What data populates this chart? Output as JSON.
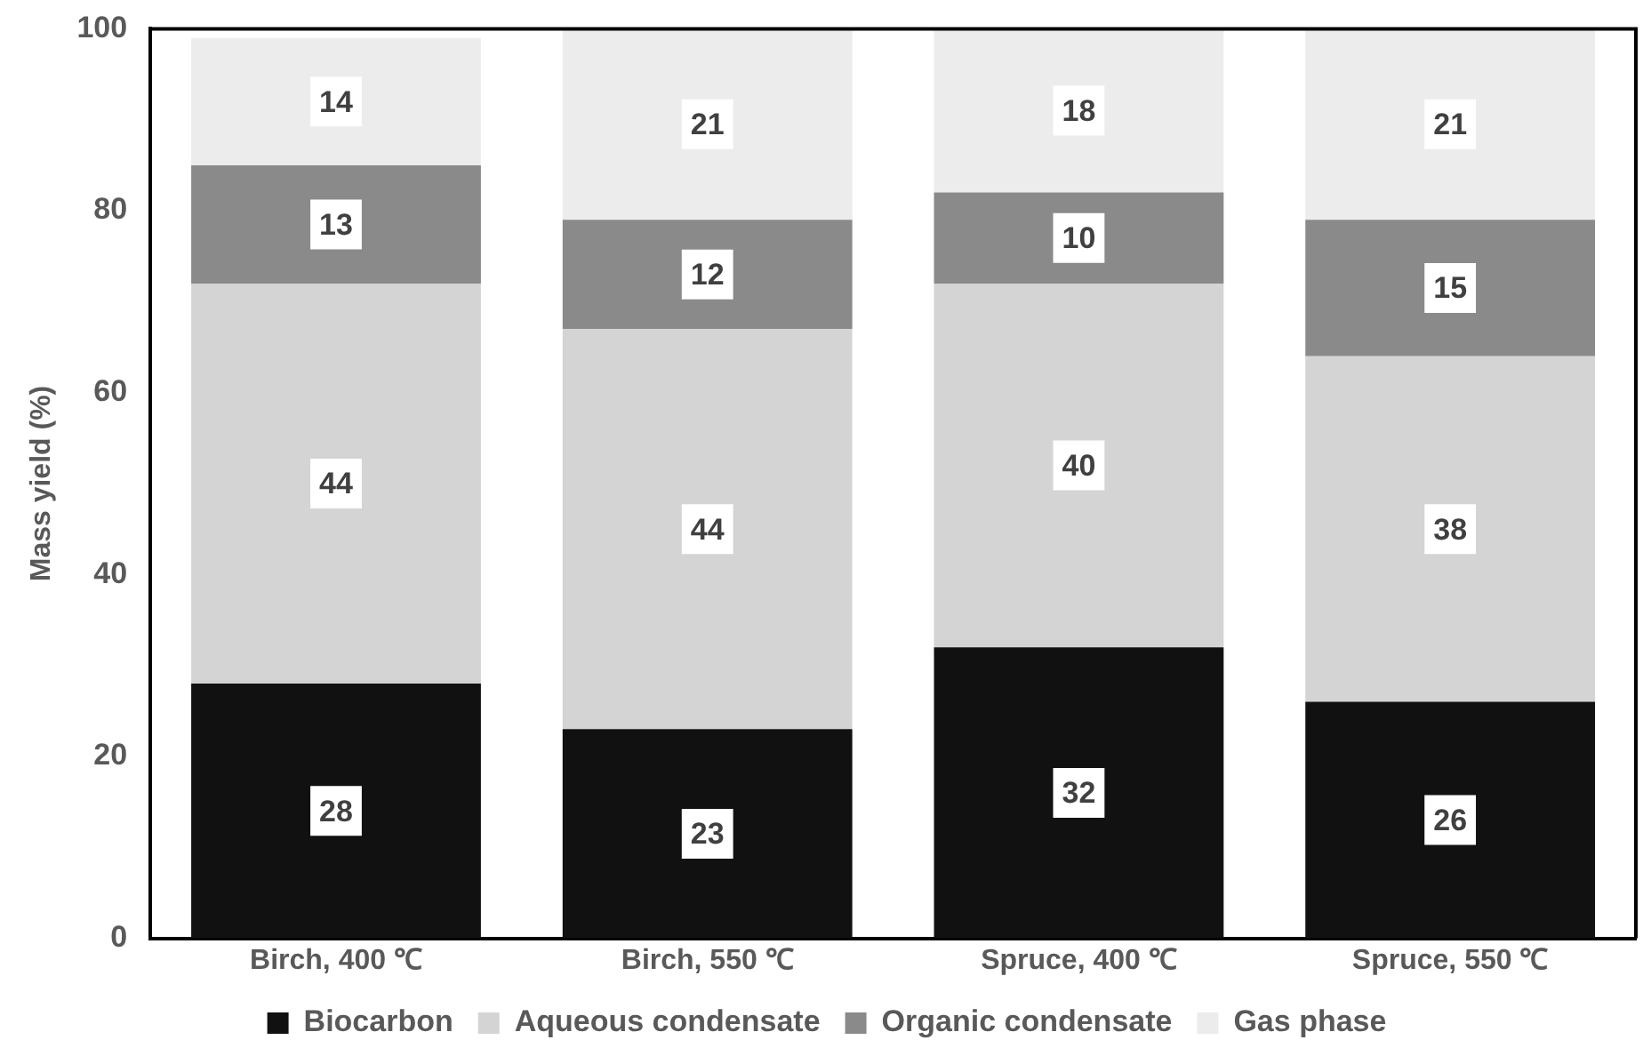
{
  "chart_data": {
    "type": "bar",
    "stacked": true,
    "ylabel": "Mass yield (%)",
    "categories": [
      "Birch, 400 ℃",
      "Birch, 550 ℃",
      "Spruce, 400 ℃",
      "Spruce, 550 ℃"
    ],
    "series": [
      {
        "name": "Biocarbon",
        "color": "#111111",
        "values": [
          28,
          23,
          32,
          26
        ]
      },
      {
        "name": "Aqueous condensate",
        "color": "#d4d4d4",
        "values": [
          44,
          44,
          40,
          38
        ]
      },
      {
        "name": "Organic condensate",
        "color": "#8a8a8a",
        "values": [
          13,
          12,
          10,
          15
        ]
      },
      {
        "name": "Gas phase",
        "color": "#ececec",
        "values": [
          14,
          21,
          18,
          21
        ]
      }
    ],
    "ylim": [
      0,
      100
    ],
    "yticks": [
      0,
      20,
      40,
      60,
      80,
      100
    ],
    "grid": false,
    "legend": "bottom",
    "data_labels": true
  }
}
